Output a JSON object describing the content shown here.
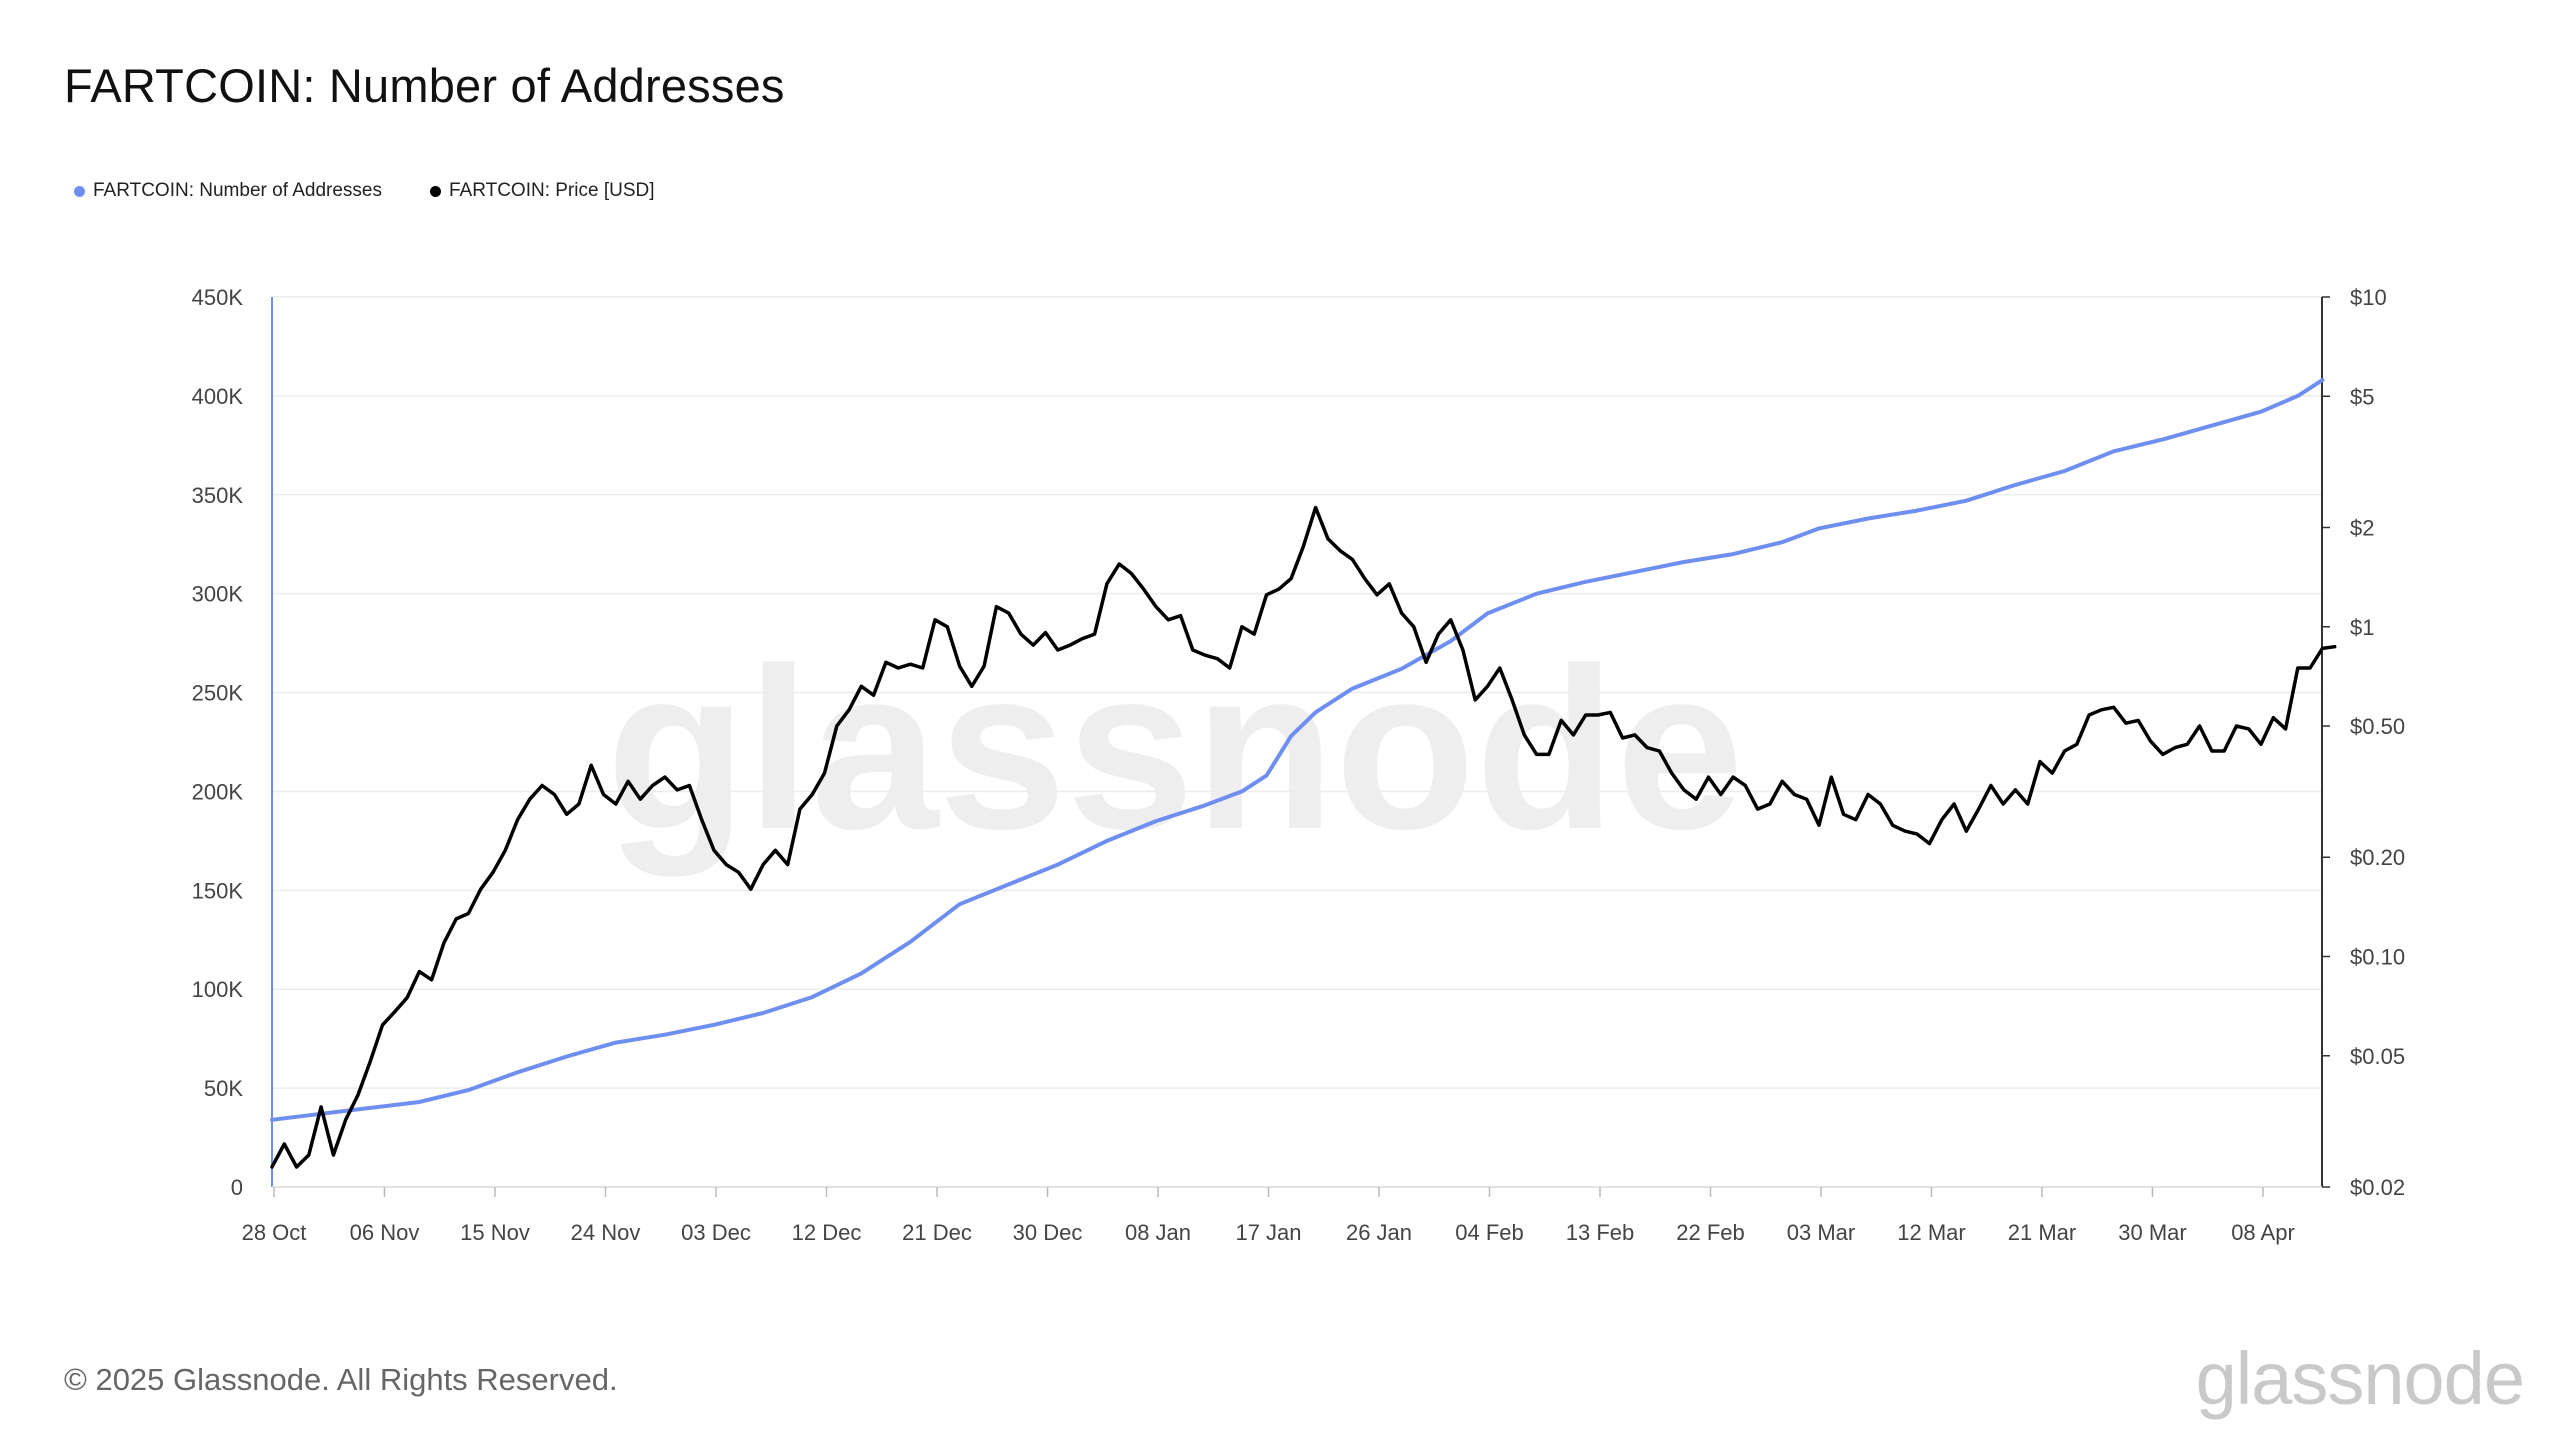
{
  "title": "FARTCOIN: Number of Addresses",
  "legend": [
    {
      "label": "FARTCOIN: Number of Addresses",
      "color": "#6f8ff0"
    },
    {
      "label": "FARTCOIN: Price [USD]",
      "color": "#000000"
    }
  ],
  "footer": "© 2025 Glassnode. All Rights Reserved.",
  "logo": "glassnode",
  "watermark": "glassnode",
  "chart_data": {
    "type": "line",
    "x_tick_labels": [
      "28 Oct",
      "06 Nov",
      "15 Nov",
      "24 Nov",
      "03 Dec",
      "12 Dec",
      "21 Dec",
      "30 Dec",
      "08 Jan",
      "17 Jan",
      "26 Jan",
      "04 Feb",
      "13 Feb",
      "22 Feb",
      "03 Mar",
      "12 Mar",
      "21 Mar",
      "30 Mar",
      "08 Apr"
    ],
    "left_axis": {
      "ticks": [
        0,
        50000,
        100000,
        150000,
        200000,
        250000,
        300000,
        350000,
        400000,
        450000
      ],
      "tick_labels": [
        "0",
        "50K",
        "100K",
        "150K",
        "200K",
        "250K",
        "300K",
        "350K",
        "400K",
        "450K"
      ],
      "ylim": [
        0,
        450000
      ]
    },
    "right_axis": {
      "scale": "log",
      "ticks": [
        0.02,
        0.05,
        0.1,
        0.2,
        0.5,
        1,
        2,
        5,
        10
      ],
      "tick_labels": [
        "$0.02",
        "$0.05",
        "$0.10",
        "$0.20",
        "$0.50",
        "$1",
        "$2",
        "$5",
        "$10"
      ],
      "ylim": [
        0.02,
        10
      ]
    },
    "grid": true,
    "legend_position": "top-left",
    "series": [
      {
        "name": "FARTCOIN: Number of Addresses",
        "axis": "left",
        "color": "#6f8ff0",
        "points": [
          [
            "2024-10-28",
            34000
          ],
          [
            "2024-11-01",
            37000
          ],
          [
            "2024-11-05",
            40000
          ],
          [
            "2024-11-09",
            43000
          ],
          [
            "2024-11-13",
            49000
          ],
          [
            "2024-11-17",
            58000
          ],
          [
            "2024-11-21",
            66000
          ],
          [
            "2024-11-25",
            73000
          ],
          [
            "2024-11-29",
            77000
          ],
          [
            "2024-12-03",
            82000
          ],
          [
            "2024-12-07",
            88000
          ],
          [
            "2024-12-11",
            96000
          ],
          [
            "2024-12-15",
            108000
          ],
          [
            "2024-12-19",
            124000
          ],
          [
            "2024-12-23",
            143000
          ],
          [
            "2024-12-27",
            153000
          ],
          [
            "2024-12-31",
            163000
          ],
          [
            "2025-01-04",
            175000
          ],
          [
            "2025-01-08",
            185000
          ],
          [
            "2025-01-12",
            193000
          ],
          [
            "2025-01-15",
            200000
          ],
          [
            "2025-01-17",
            208000
          ],
          [
            "2025-01-19",
            228000
          ],
          [
            "2025-01-21",
            240000
          ],
          [
            "2025-01-24",
            252000
          ],
          [
            "2025-01-28",
            262000
          ],
          [
            "2025-02-01",
            276000
          ],
          [
            "2025-02-04",
            290000
          ],
          [
            "2025-02-08",
            300000
          ],
          [
            "2025-02-12",
            306000
          ],
          [
            "2025-02-16",
            311000
          ],
          [
            "2025-02-20",
            316000
          ],
          [
            "2025-02-24",
            320000
          ],
          [
            "2025-02-28",
            326000
          ],
          [
            "2025-03-03",
            333000
          ],
          [
            "2025-03-07",
            338000
          ],
          [
            "2025-03-11",
            342000
          ],
          [
            "2025-03-15",
            347000
          ],
          [
            "2025-03-19",
            355000
          ],
          [
            "2025-03-23",
            362000
          ],
          [
            "2025-03-27",
            372000
          ],
          [
            "2025-03-31",
            378000
          ],
          [
            "2025-04-04",
            385000
          ],
          [
            "2025-04-08",
            392000
          ],
          [
            "2025-04-11",
            400000
          ],
          [
            "2025-04-13",
            408000
          ]
        ]
      },
      {
        "name": "FARTCOIN: Price [USD]",
        "axis": "right",
        "color": "#000000",
        "points": [
          [
            "2024-10-28",
            0.023
          ],
          [
            "2024-10-29",
            0.027
          ],
          [
            "2024-10-30",
            0.023
          ],
          [
            "2024-10-31",
            0.025
          ],
          [
            "2024-11-01",
            0.035
          ],
          [
            "2024-11-02",
            0.025
          ],
          [
            "2024-11-03",
            0.032
          ],
          [
            "2024-11-04",
            0.038
          ],
          [
            "2024-11-05",
            0.048
          ],
          [
            "2024-11-06",
            0.062
          ],
          [
            "2024-11-07",
            0.068
          ],
          [
            "2024-11-08",
            0.075
          ],
          [
            "2024-11-09",
            0.09
          ],
          [
            "2024-11-10",
            0.085
          ],
          [
            "2024-11-11",
            0.11
          ],
          [
            "2024-11-12",
            0.13
          ],
          [
            "2024-11-13",
            0.135
          ],
          [
            "2024-11-14",
            0.16
          ],
          [
            "2024-11-15",
            0.18
          ],
          [
            "2024-11-16",
            0.21
          ],
          [
            "2024-11-17",
            0.26
          ],
          [
            "2024-11-18",
            0.3
          ],
          [
            "2024-11-19",
            0.33
          ],
          [
            "2024-11-20",
            0.31
          ],
          [
            "2024-11-21",
            0.27
          ],
          [
            "2024-11-22",
            0.29
          ],
          [
            "2024-11-23",
            0.38
          ],
          [
            "2024-11-24",
            0.31
          ],
          [
            "2024-11-25",
            0.29
          ],
          [
            "2024-11-26",
            0.34
          ],
          [
            "2024-11-27",
            0.3
          ],
          [
            "2024-11-28",
            0.33
          ],
          [
            "2024-11-29",
            0.35
          ],
          [
            "2024-11-30",
            0.32
          ],
          [
            "2024-12-01",
            0.33
          ],
          [
            "2024-12-02",
            0.26
          ],
          [
            "2024-12-03",
            0.21
          ],
          [
            "2024-12-04",
            0.19
          ],
          [
            "2024-12-05",
            0.18
          ],
          [
            "2024-12-06",
            0.16
          ],
          [
            "2024-12-07",
            0.19
          ],
          [
            "2024-12-08",
            0.21
          ],
          [
            "2024-12-09",
            0.19
          ],
          [
            "2024-12-10",
            0.28
          ],
          [
            "2024-12-11",
            0.31
          ],
          [
            "2024-12-12",
            0.36
          ],
          [
            "2024-12-13",
            0.5
          ],
          [
            "2024-12-14",
            0.56
          ],
          [
            "2024-12-15",
            0.66
          ],
          [
            "2024-12-16",
            0.62
          ],
          [
            "2024-12-17",
            0.78
          ],
          [
            "2024-12-18",
            0.75
          ],
          [
            "2024-12-19",
            0.77
          ],
          [
            "2024-12-20",
            0.75
          ],
          [
            "2024-12-21",
            1.05
          ],
          [
            "2024-12-22",
            1.0
          ],
          [
            "2024-12-23",
            0.76
          ],
          [
            "2024-12-24",
            0.66
          ],
          [
            "2024-12-25",
            0.76
          ],
          [
            "2024-12-26",
            1.15
          ],
          [
            "2024-12-27",
            1.1
          ],
          [
            "2024-12-28",
            0.95
          ],
          [
            "2024-12-29",
            0.88
          ],
          [
            "2024-12-30",
            0.96
          ],
          [
            "2024-12-31",
            0.85
          ],
          [
            "2025-01-01",
            0.88
          ],
          [
            "2025-01-02",
            0.92
          ],
          [
            "2025-01-03",
            0.95
          ],
          [
            "2025-01-04",
            1.35
          ],
          [
            "2025-01-05",
            1.55
          ],
          [
            "2025-01-06",
            1.45
          ],
          [
            "2025-01-07",
            1.3
          ],
          [
            "2025-01-08",
            1.15
          ],
          [
            "2025-01-09",
            1.05
          ],
          [
            "2025-01-10",
            1.08
          ],
          [
            "2025-01-11",
            0.85
          ],
          [
            "2025-01-12",
            0.82
          ],
          [
            "2025-01-13",
            0.8
          ],
          [
            "2025-01-14",
            0.75
          ],
          [
            "2025-01-15",
            1.0
          ],
          [
            "2025-01-16",
            0.95
          ],
          [
            "2025-01-17",
            1.25
          ],
          [
            "2025-01-18",
            1.3
          ],
          [
            "2025-01-19",
            1.4
          ],
          [
            "2025-01-20",
            1.75
          ],
          [
            "2025-01-21",
            2.3
          ],
          [
            "2025-01-22",
            1.85
          ],
          [
            "2025-01-23",
            1.7
          ],
          [
            "2025-01-24",
            1.6
          ],
          [
            "2025-01-25",
            1.4
          ],
          [
            "2025-01-26",
            1.25
          ],
          [
            "2025-01-27",
            1.35
          ],
          [
            "2025-01-28",
            1.1
          ],
          [
            "2025-01-29",
            1.0
          ],
          [
            "2025-01-30",
            0.78
          ],
          [
            "2025-01-31",
            0.95
          ],
          [
            "2025-02-01",
            1.05
          ],
          [
            "2025-02-02",
            0.85
          ],
          [
            "2025-02-03",
            0.6
          ],
          [
            "2025-02-04",
            0.66
          ],
          [
            "2025-02-05",
            0.75
          ],
          [
            "2025-02-06",
            0.6
          ],
          [
            "2025-02-07",
            0.47
          ],
          [
            "2025-02-08",
            0.41
          ],
          [
            "2025-02-09",
            0.41
          ],
          [
            "2025-02-10",
            0.52
          ],
          [
            "2025-02-11",
            0.47
          ],
          [
            "2025-02-12",
            0.54
          ],
          [
            "2025-02-13",
            0.54
          ],
          [
            "2025-02-14",
            0.55
          ],
          [
            "2025-02-15",
            0.46
          ],
          [
            "2025-02-16",
            0.47
          ],
          [
            "2025-02-17",
            0.43
          ],
          [
            "2025-02-18",
            0.42
          ],
          [
            "2025-02-19",
            0.36
          ],
          [
            "2025-02-20",
            0.32
          ],
          [
            "2025-02-21",
            0.3
          ],
          [
            "2025-02-22",
            0.35
          ],
          [
            "2025-02-23",
            0.31
          ],
          [
            "2025-02-24",
            0.35
          ],
          [
            "2025-02-25",
            0.33
          ],
          [
            "2025-02-26",
            0.28
          ],
          [
            "2025-02-27",
            0.29
          ],
          [
            "2025-02-28",
            0.34
          ],
          [
            "2025-03-01",
            0.31
          ],
          [
            "2025-03-02",
            0.3
          ],
          [
            "2025-03-03",
            0.25
          ],
          [
            "2025-03-04",
            0.35
          ],
          [
            "2025-03-05",
            0.27
          ],
          [
            "2025-03-06",
            0.26
          ],
          [
            "2025-03-07",
            0.31
          ],
          [
            "2025-03-08",
            0.29
          ],
          [
            "2025-03-09",
            0.25
          ],
          [
            "2025-03-10",
            0.24
          ],
          [
            "2025-03-11",
            0.235
          ],
          [
            "2025-03-12",
            0.22
          ],
          [
            "2025-03-13",
            0.26
          ],
          [
            "2025-03-14",
            0.29
          ],
          [
            "2025-03-15",
            0.24
          ],
          [
            "2025-03-16",
            0.28
          ],
          [
            "2025-03-17",
            0.33
          ],
          [
            "2025-03-18",
            0.29
          ],
          [
            "2025-03-19",
            0.32
          ],
          [
            "2025-03-20",
            0.29
          ],
          [
            "2025-03-21",
            0.39
          ],
          [
            "2025-03-22",
            0.36
          ],
          [
            "2025-03-23",
            0.42
          ],
          [
            "2025-03-24",
            0.44
          ],
          [
            "2025-03-25",
            0.54
          ],
          [
            "2025-03-26",
            0.56
          ],
          [
            "2025-03-27",
            0.57
          ],
          [
            "2025-03-28",
            0.51
          ],
          [
            "2025-03-29",
            0.52
          ],
          [
            "2025-03-30",
            0.45
          ],
          [
            "2025-03-31",
            0.41
          ],
          [
            "2025-04-01",
            0.43
          ],
          [
            "2025-04-02",
            0.44
          ],
          [
            "2025-04-03",
            0.5
          ],
          [
            "2025-04-04",
            0.42
          ],
          [
            "2025-04-05",
            0.42
          ],
          [
            "2025-04-06",
            0.5
          ],
          [
            "2025-04-07",
            0.49
          ],
          [
            "2025-04-08",
            0.44
          ],
          [
            "2025-04-09",
            0.53
          ],
          [
            "2025-04-10",
            0.49
          ],
          [
            "2025-04-11",
            0.75
          ],
          [
            "2025-04-12",
            0.75
          ],
          [
            "2025-04-13",
            0.86
          ],
          [
            "2025-04-14",
            0.87
          ]
        ]
      }
    ]
  }
}
